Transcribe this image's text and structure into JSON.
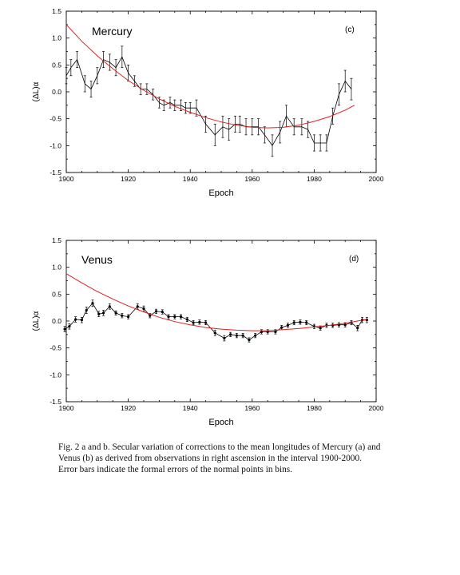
{
  "chart_data": [
    {
      "type": "line",
      "panel_label": "(c)",
      "planet_label": "Mercury",
      "xlabel": "Epoch",
      "ylabel": "(ΔL)α",
      "xlim": [
        1900,
        2000
      ],
      "ylim": [
        -1.5,
        1.5
      ],
      "xticks": [
        1900,
        1920,
        1940,
        1960,
        1980,
        2000
      ],
      "yticks": [
        -1.5,
        -1.0,
        -0.5,
        0.0,
        0.5,
        1.0,
        1.5
      ],
      "ytick_labels": [
        "-1.5",
        "-1.0",
        "-0.5",
        "0.0",
        "0.5",
        "1.0",
        "1.5"
      ],
      "series": [
        {
          "kind": "observations",
          "color": "#000000",
          "x": [
            1900,
            1901.5,
            1903.5,
            1906,
            1908,
            1910,
            1912,
            1914,
            1916,
            1918,
            1920,
            1922,
            1924,
            1926,
            1928,
            1930,
            1931.5,
            1933.5,
            1935,
            1937,
            1938.5,
            1940,
            1942,
            1945,
            1948,
            1950.5,
            1952.5,
            1954.5,
            1956,
            1958,
            1960,
            1962,
            1964,
            1966.5,
            1969,
            1971,
            1973.5,
            1976,
            1978,
            1980,
            1982,
            1984,
            1986,
            1988,
            1990,
            1992
          ],
          "y": [
            0.3,
            0.45,
            0.6,
            0.15,
            0.05,
            0.3,
            0.6,
            0.55,
            0.45,
            0.65,
            0.35,
            0.2,
            0.05,
            0.05,
            -0.05,
            -0.2,
            -0.25,
            -0.2,
            -0.25,
            -0.25,
            -0.3,
            -0.3,
            -0.3,
            -0.6,
            -0.8,
            -0.65,
            -0.7,
            -0.6,
            -0.6,
            -0.65,
            -0.65,
            -0.65,
            -0.8,
            -1.0,
            -0.75,
            -0.45,
            -0.65,
            -0.65,
            -0.7,
            -0.95,
            -0.95,
            -0.95,
            -0.45,
            -0.05,
            0.2,
            0.05
          ],
          "err": [
            0.15,
            0.15,
            0.15,
            0.15,
            0.15,
            0.15,
            0.15,
            0.15,
            0.15,
            0.2,
            0.15,
            0.1,
            0.1,
            0.1,
            0.1,
            0.1,
            0.1,
            0.1,
            0.1,
            0.1,
            0.1,
            0.1,
            0.15,
            0.15,
            0.2,
            0.2,
            0.2,
            0.15,
            0.15,
            0.15,
            0.15,
            0.15,
            0.15,
            0.2,
            0.2,
            0.2,
            0.15,
            0.15,
            0.15,
            0.15,
            0.15,
            0.15,
            0.15,
            0.2,
            0.2,
            0.2
          ]
        },
        {
          "kind": "fit",
          "color": "#e02020",
          "x": [
            1900,
            1905,
            1910,
            1915,
            1920,
            1925,
            1930,
            1935,
            1940,
            1945,
            1950,
            1955,
            1960,
            1965,
            1970,
            1975,
            1980,
            1985,
            1990,
            1993
          ],
          "y": [
            1.25,
            0.94,
            0.67,
            0.43,
            0.21,
            0.03,
            -0.13,
            -0.27,
            -0.38,
            -0.48,
            -0.56,
            -0.62,
            -0.66,
            -0.67,
            -0.66,
            -0.62,
            -0.55,
            -0.46,
            -0.34,
            -0.25
          ]
        }
      ]
    },
    {
      "type": "line",
      "panel_label": "(d)",
      "planet_label": "Venus",
      "xlabel": "Epoch",
      "ylabel": "(ΔL)α",
      "xlim": [
        1900,
        2000
      ],
      "ylim": [
        -1.5,
        1.5
      ],
      "xticks": [
        1900,
        1920,
        1940,
        1960,
        1980,
        2000
      ],
      "yticks": [
        -1.5,
        -1.0,
        -0.5,
        0.0,
        0.5,
        1.0,
        1.5
      ],
      "ytick_labels": [
        "-1.5",
        "-1.0",
        "-0.5",
        "0.0",
        "0.5",
        "1.0",
        "1.5"
      ],
      "series": [
        {
          "kind": "observations",
          "color": "#000000",
          "x": [
            1899.5,
            1901,
            1903,
            1905,
            1906.5,
            1908.5,
            1910.5,
            1912,
            1914,
            1916,
            1918,
            1920,
            1923,
            1925,
            1927,
            1929,
            1931,
            1933,
            1935,
            1937,
            1939,
            1941,
            1943,
            1945,
            1948,
            1951,
            1953,
            1955,
            1957,
            1959,
            1961,
            1963,
            1965,
            1967.5,
            1969.5,
            1971.5,
            1973.5,
            1975.5,
            1977.5,
            1980,
            1982,
            1984,
            1986,
            1988,
            1990,
            1992,
            1994,
            1995.5,
            1997
          ],
          "y": [
            -0.15,
            -0.1,
            0.03,
            0.02,
            0.2,
            0.33,
            0.13,
            0.15,
            0.27,
            0.15,
            0.1,
            0.08,
            0.27,
            0.23,
            0.1,
            0.18,
            0.17,
            0.08,
            0.08,
            0.08,
            0.03,
            -0.03,
            -0.02,
            -0.03,
            -0.22,
            -0.32,
            -0.25,
            -0.27,
            -0.27,
            -0.35,
            -0.27,
            -0.2,
            -0.2,
            -0.2,
            -0.12,
            -0.08,
            -0.03,
            -0.02,
            -0.03,
            -0.1,
            -0.13,
            -0.08,
            -0.08,
            -0.07,
            -0.07,
            -0.03,
            -0.13,
            0.02,
            0.02
          ],
          "err": [
            0.05,
            0.05,
            0.05,
            0.05,
            0.06,
            0.06,
            0.05,
            0.05,
            0.05,
            0.04,
            0.04,
            0.04,
            0.05,
            0.05,
            0.04,
            0.04,
            0.04,
            0.04,
            0.04,
            0.04,
            0.04,
            0.04,
            0.04,
            0.04,
            0.05,
            0.05,
            0.04,
            0.04,
            0.04,
            0.04,
            0.04,
            0.04,
            0.04,
            0.04,
            0.04,
            0.04,
            0.04,
            0.04,
            0.04,
            0.04,
            0.04,
            0.04,
            0.04,
            0.04,
            0.04,
            0.04,
            0.05,
            0.05,
            0.05
          ]
        },
        {
          "kind": "fit",
          "color": "#e02020",
          "x": [
            1900,
            1905,
            1910,
            1915,
            1920,
            1925,
            1930,
            1935,
            1940,
            1945,
            1950,
            1955,
            1960,
            1965,
            1970,
            1975,
            1980,
            1985,
            1990,
            1995,
            1997
          ],
          "y": [
            0.88,
            0.71,
            0.55,
            0.41,
            0.28,
            0.17,
            0.07,
            -0.01,
            -0.07,
            -0.12,
            -0.15,
            -0.17,
            -0.18,
            -0.18,
            -0.16,
            -0.14,
            -0.11,
            -0.08,
            -0.04,
            0.01,
            0.03
          ]
        }
      ]
    }
  ],
  "caption_lines": [
    "Fig. 2 a and b. Secular variation of corrections to the mean longitudes of Mercury (a) and",
    "Venus (b) as derived from observations in right ascension  in the interval 1900-2000.",
    "Error bars indicate the formal errors of the normal points in bins."
  ]
}
